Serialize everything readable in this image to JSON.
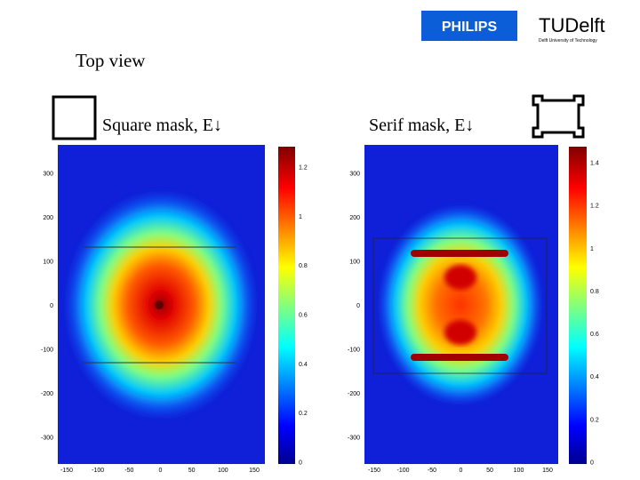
{
  "logos": {
    "philips": "PHILIPS",
    "tudelft": "TUDelft",
    "tudelft_sub": "Delft University of Technology"
  },
  "title": "Top view",
  "panels": [
    {
      "label": "Square mask, E↓",
      "xticks": [
        -150,
        -100,
        -50,
        0,
        50,
        100,
        150
      ],
      "yticks": [
        300,
        200,
        100,
        0,
        -100,
        -200,
        -300
      ],
      "colorbar_ticks": [
        0,
        0.2,
        0.4,
        0.6,
        0.8,
        1,
        1.2
      ]
    },
    {
      "label": "Serif mask, E↓",
      "xticks": [
        -150,
        -100,
        -50,
        0,
        50,
        100,
        150
      ],
      "yticks": [
        300,
        200,
        100,
        0,
        -100,
        -200,
        -300
      ],
      "colorbar_ticks": [
        0,
        0.2,
        0.4,
        0.6,
        0.8,
        1,
        1.2,
        1.4
      ]
    }
  ]
}
